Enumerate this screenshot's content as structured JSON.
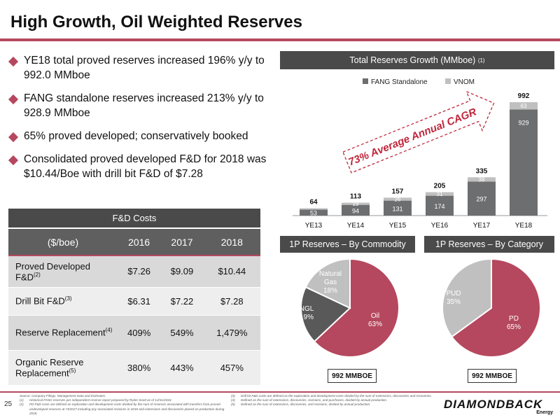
{
  "title": "High Growth, Oil Weighted Reserves",
  "bullets": [
    "YE18 total proved reserves increased 196% y/y to 992.0 MMboe",
    "FANG standalone reserves increased 213% y/y to 928.9 MMboe",
    "65% proved developed; conservatively booked",
    "Consolidated proved developed F&D for 2018 was $10.44/Boe with drill bit F&D of $7.28"
  ],
  "fd_costs": {
    "title": "F&D Costs",
    "headers": [
      "($/boe)",
      "2016",
      "2017",
      "2018"
    ],
    "rows": [
      {
        "label": "Proved Developed F&D",
        "sup": "(2)",
        "values": [
          "$7.26",
          "$9.09",
          "$10.44"
        ]
      },
      {
        "label": "Drill Bit F&D",
        "sup": "(3)",
        "values": [
          "$6.31",
          "$7.22",
          "$7.28"
        ]
      },
      {
        "label": "Reserve Replacement",
        "sup": "(4)",
        "values": [
          "409%",
          "549%",
          "1,479%"
        ]
      },
      {
        "label": "Organic Reserve Replacement",
        "sup": "(5)",
        "values": [
          "380%",
          "443%",
          "457%"
        ]
      }
    ]
  },
  "reserves_panel": {
    "title": "Total Reserves Growth (MMboe)",
    "sup": "(1)"
  },
  "cagr_text": "73% Average Annual CAGR",
  "commodity_panel": {
    "title": "1P Reserves – By Commodity",
    "badge": "992 MMBOE"
  },
  "category_panel": {
    "title": "1P Reserves – By Category",
    "badge": "992 MMBOE"
  },
  "colors": {
    "accent": "#b5485e",
    "fang": "#6d6e70",
    "vnom": "#c0c0c0",
    "header": "#4a4a4a",
    "pie_ngl": "#595959"
  },
  "chart_data": [
    {
      "type": "bar",
      "stacked": true,
      "categories": [
        "YE13",
        "YE14",
        "YE15",
        "YE16",
        "YE17",
        "YE18"
      ],
      "series": [
        {
          "name": "FANG Standalone",
          "values": [
            53,
            94,
            131,
            174,
            297,
            929
          ],
          "color": "#6d6e70"
        },
        {
          "name": "VNOM",
          "values": [
            11,
            19,
            26,
            31,
            38,
            63
          ],
          "color": "#c0c0c0"
        }
      ],
      "visible_labels": {
        "FANG Standalone": [
          "53",
          "94",
          "131",
          "174",
          "297",
          "929"
        ],
        "VNOM": [
          "",
          "19",
          "26",
          "31",
          "38",
          "63"
        ]
      },
      "totals": [
        64,
        113,
        157,
        205,
        335,
        992
      ],
      "legend": "top-center",
      "ylim": [
        0,
        1000
      ]
    },
    {
      "type": "pie",
      "slices": [
        {
          "label": [
            "Oil",
            "63%"
          ],
          "value": 63,
          "color": "#b5485e"
        },
        {
          "label": [
            "NGL",
            "19%"
          ],
          "value": 19,
          "color": "#595959"
        },
        {
          "label": [
            "Natural",
            "Gas",
            "18%"
          ],
          "value": 18,
          "color": "#c0c0c0"
        }
      ]
    },
    {
      "type": "pie",
      "slices": [
        {
          "label": [
            "PD",
            "65%"
          ],
          "value": 65,
          "color": "#b5485e"
        },
        {
          "label": [
            "PUD",
            "35%"
          ],
          "value": 35,
          "color": "#c0c0c0"
        }
      ]
    }
  ],
  "footer": {
    "page_number": "25",
    "source": "Source: Company Filings, Management Data and Estimates.",
    "notes_left": [
      {
        "k": "(1)",
        "t": "Historical FANG reserves per independent reserve report prepared by Ryder Scott as of 12/31/2018."
      },
      {
        "k": "(2)",
        "t": "PD F&D costs are defined as exploration and development costs divided by the sum of reserves associated with transfers from proved undeveloped reserves at YE2017 including any associated revisions in 2018 and extensions and discoveries placed on production during 2018."
      }
    ],
    "notes_right": [
      {
        "k": "(3)",
        "t": "Drill bit F&D costs are defined as the exploration and development costs divided by the sum of extensions, discoveries and recoveries."
      },
      {
        "k": "(4)",
        "t": "Defined as the sum of extensions, discoveries, revisions, and purchases, divided by annual production."
      },
      {
        "k": "(5)",
        "t": "Defined as the sum of extensions, discoveries, and revisions, divided by annual production."
      }
    ],
    "logo": "DIAMONDBACK",
    "logo_sub": "Energy"
  }
}
